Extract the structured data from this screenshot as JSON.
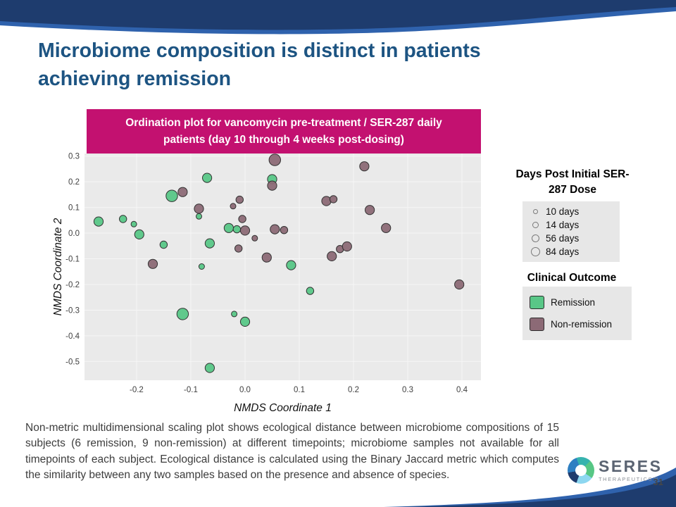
{
  "slide": {
    "title": "Microbiome composition is distinct in patients achieving remission",
    "page_number": "31"
  },
  "chart_header": {
    "text": "Ordination plot for vancomycin pre-treatment / SER-287 daily patients (day 10 through 4 weeks post-dosing)"
  },
  "chart_data": {
    "type": "scatter",
    "title": "Ordination plot for vancomycin pre-treatment / SER-287 daily patients (day 10 through 4 weeks post-dosing)",
    "xlabel": "NMDS Coordinate 1",
    "ylabel": "NMDS Coordinate 2",
    "xlim": [
      -0.296,
      0.435
    ],
    "ylim": [
      -0.573,
      0.31
    ],
    "xticks": [
      -0.2,
      -0.1,
      0.0,
      0.1,
      0.2,
      0.3,
      0.4
    ],
    "yticks": [
      0.3,
      0.2,
      0.1,
      0.0,
      -0.1,
      -0.2,
      -0.3,
      -0.4,
      -0.5
    ],
    "grid": true,
    "background": "#eaeaea",
    "size_key_days": [
      10,
      14,
      56,
      84
    ],
    "series": [
      {
        "name": "Remission",
        "color": "#59c787",
        "points": [
          [
            -0.27,
            0.045,
            56
          ],
          [
            -0.225,
            0.055,
            14
          ],
          [
            -0.205,
            0.035,
            10
          ],
          [
            -0.195,
            -0.005,
            56
          ],
          [
            -0.15,
            -0.045,
            14
          ],
          [
            -0.135,
            0.145,
            84
          ],
          [
            -0.07,
            0.215,
            56
          ],
          [
            0.05,
            0.21,
            56
          ],
          [
            -0.085,
            0.065,
            10
          ],
          [
            -0.03,
            0.02,
            56
          ],
          [
            -0.015,
            0.015,
            14
          ],
          [
            -0.065,
            -0.04,
            56
          ],
          [
            -0.08,
            -0.13,
            10
          ],
          [
            0.085,
            -0.125,
            56
          ],
          [
            0.12,
            -0.225,
            14
          ],
          [
            -0.115,
            -0.315,
            84
          ],
          [
            -0.02,
            -0.315,
            10
          ],
          [
            0.0,
            -0.345,
            56
          ],
          [
            -0.065,
            -0.525,
            56
          ]
        ]
      },
      {
        "name": "Non-remission",
        "color": "#8c6a76",
        "points": [
          [
            0.055,
            0.285,
            84
          ],
          [
            0.22,
            0.26,
            56
          ],
          [
            -0.115,
            0.16,
            56
          ],
          [
            0.05,
            0.185,
            56
          ],
          [
            -0.01,
            0.13,
            14
          ],
          [
            -0.085,
            0.095,
            56
          ],
          [
            -0.022,
            0.105,
            10
          ],
          [
            0.15,
            0.125,
            56
          ],
          [
            0.163,
            0.132,
            14
          ],
          [
            0.23,
            0.09,
            56
          ],
          [
            -0.005,
            0.055,
            14
          ],
          [
            0.0,
            0.01,
            56
          ],
          [
            0.018,
            -0.02,
            10
          ],
          [
            0.055,
            0.015,
            56
          ],
          [
            0.072,
            0.012,
            14
          ],
          [
            0.26,
            0.02,
            56
          ],
          [
            -0.012,
            -0.06,
            14
          ],
          [
            0.04,
            -0.095,
            56
          ],
          [
            0.16,
            -0.09,
            56
          ],
          [
            0.175,
            -0.062,
            14
          ],
          [
            0.188,
            -0.052,
            56
          ],
          [
            -0.17,
            -0.12,
            56
          ],
          [
            0.395,
            -0.2,
            56
          ]
        ]
      }
    ]
  },
  "legend": {
    "size_title": "Days Post Initial SER-287 Dose",
    "size_items": [
      {
        "label": "10 days",
        "days": 10
      },
      {
        "label": "14 days",
        "days": 14
      },
      {
        "label": "56 days",
        "days": 56
      },
      {
        "label": "84 days",
        "days": 84
      }
    ],
    "outcome_title": "Clinical Outcome",
    "outcome_items": [
      {
        "label": "Remission",
        "color": "#59c787"
      },
      {
        "label": "Non-remission",
        "color": "#8c6a76"
      }
    ]
  },
  "caption": {
    "text": "Non-metric multidimensional scaling plot shows ecological distance between microbiome compositions of 15 subjects (6 remission, 9 non-remission) at different timepoints; microbiome samples not available for all timepoints of each subject. Ecological distance is calculated using the Binary Jaccard metric which computes the similarity between any two samples based on the presence and absence of species."
  },
  "logo": {
    "name": "SERES",
    "sub": "THERAPEUTICS™"
  },
  "colors": {
    "brand_navy": "#1e3c6e",
    "accent_blue": "#2f62ad",
    "header_magenta": "#c31170",
    "title_blue": "#1d5482",
    "remission_green": "#59c787",
    "non_remission_mauve": "#8c6a76"
  }
}
